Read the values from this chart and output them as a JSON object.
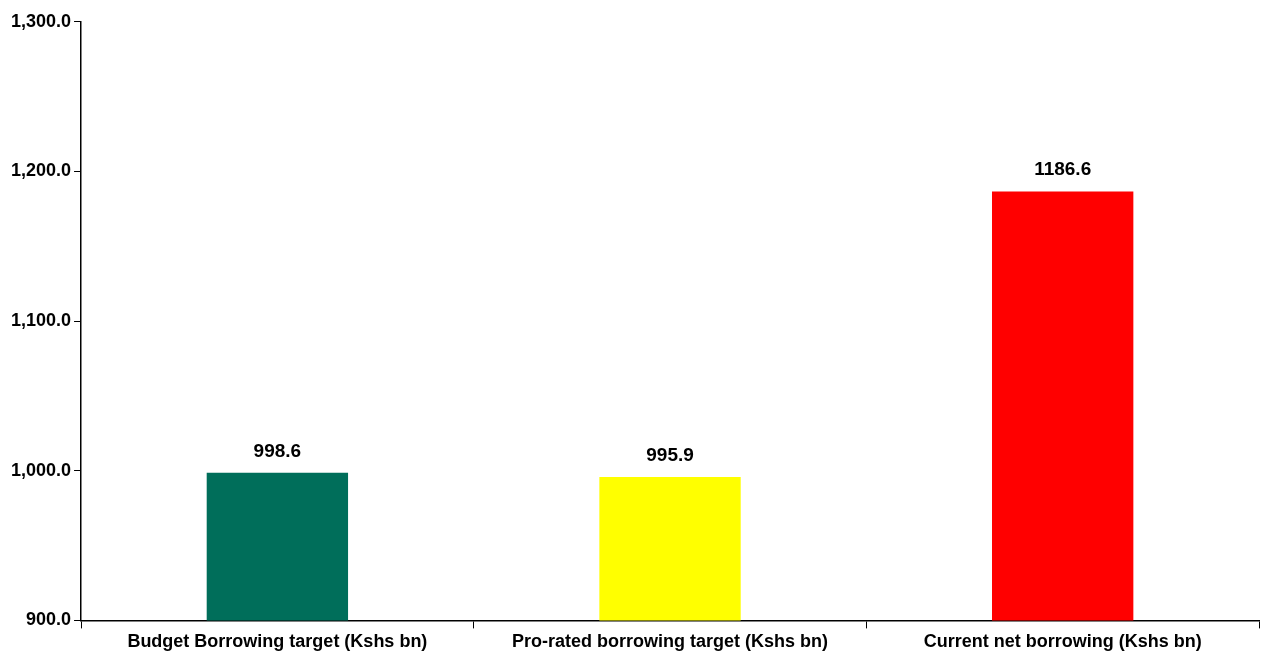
{
  "chart_data": {
    "type": "bar",
    "categories": [
      "Budget Borrowing target (Kshs bn)",
      "Pro-rated borrowing target (Kshs bn)",
      "Current net borrowing (Kshs bn)"
    ],
    "values": [
      998.6,
      995.9,
      1186.6
    ],
    "colors": [
      "#006e5a",
      "#ffff00",
      "#ff0000"
    ],
    "ylim": [
      900,
      1300
    ],
    "yticks": [
      {
        "value": 900,
        "label": "900.0"
      },
      {
        "value": 1000,
        "label": "1,000.0"
      },
      {
        "value": 1100,
        "label": "1,100.0"
      },
      {
        "value": 1200,
        "label": "1,200.0"
      },
      {
        "value": 1300,
        "label": "1,300.0"
      }
    ],
    "data_labels": true,
    "grid": false,
    "legend": false
  }
}
